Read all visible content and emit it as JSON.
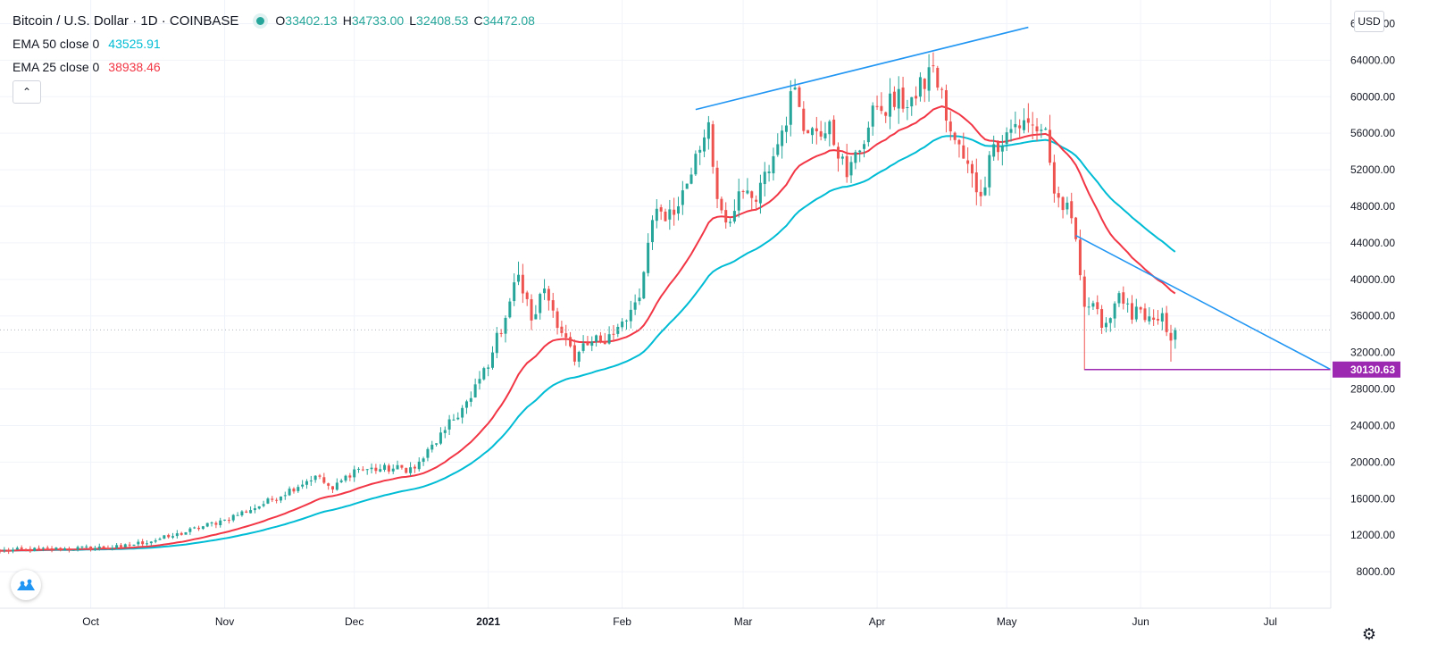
{
  "header": {
    "symbol_title": "Bitcoin / U.S. Dollar · 1D · COINBASE",
    "ohlc": [
      {
        "label": "O",
        "value": "33402.13"
      },
      {
        "label": "H",
        "value": "34733.00"
      },
      {
        "label": "L",
        "value": "32408.53"
      },
      {
        "label": "C",
        "value": "34472.08"
      }
    ]
  },
  "indicators": {
    "ema50": {
      "name": "EMA 50 close 0",
      "value": "43525.91",
      "color": "#00bcd4"
    },
    "ema25": {
      "name": "EMA 25 close 0",
      "value": "38938.46",
      "color": "#f23645"
    }
  },
  "currency": "USD",
  "price_tag": {
    "value": "30130.63",
    "color": "#9c27b0"
  },
  "colors": {
    "up": "#26a69a",
    "down": "#ef5350",
    "trendline": "#2196f3",
    "support": "#9c27b0"
  },
  "icons": {
    "collapse": "chevron-up-icon",
    "logo": "tradingview-logo-icon",
    "settings": "gear-icon"
  },
  "chart_data": {
    "type": "candlestick",
    "y_axis": {
      "range": [
        4000,
        70000
      ],
      "ticks": [
        8000,
        12000,
        16000,
        20000,
        24000,
        28000,
        32000,
        36000,
        40000,
        44000,
        48000,
        52000,
        56000,
        60000,
        64000,
        68000
      ],
      "tick_labels": [
        "8000.00",
        "12000.00",
        "16000.00",
        "20000.00",
        "24000.00",
        "28000.00",
        "32000.00",
        "36000.00",
        "40000.00",
        "44000.00",
        "48000.00",
        "52000.00",
        "56000.00",
        "60000.00",
        "64000.00",
        "68000.00"
      ]
    },
    "x_axis": {
      "range": [
        "2020-09-10",
        "2021-07-15"
      ],
      "ticks": [
        {
          "date": "2020-10-01",
          "label": "Oct",
          "bold": false
        },
        {
          "date": "2020-11-01",
          "label": "Nov",
          "bold": false
        },
        {
          "date": "2020-12-01",
          "label": "Dec",
          "bold": false
        },
        {
          "date": "2021-01-01",
          "label": "2021",
          "bold": true
        },
        {
          "date": "2021-02-01",
          "label": "Feb",
          "bold": false
        },
        {
          "date": "2021-03-01",
          "label": "Mar",
          "bold": false
        },
        {
          "date": "2021-04-01",
          "label": "Apr",
          "bold": false
        },
        {
          "date": "2021-05-01",
          "label": "May",
          "bold": false
        },
        {
          "date": "2021-06-01",
          "label": "Jun",
          "bold": false
        },
        {
          "date": "2021-07-01",
          "label": "Jul",
          "bold": false
        }
      ]
    },
    "close_anchors": [
      [
        "2020-09-10",
        10300
      ],
      [
        "2020-10-08",
        10700
      ],
      [
        "2020-10-20",
        11900
      ],
      [
        "2020-11-01",
        13700
      ],
      [
        "2020-11-10",
        15400
      ],
      [
        "2020-11-22",
        18500
      ],
      [
        "2020-11-26",
        17000
      ],
      [
        "2020-12-01",
        19200
      ],
      [
        "2020-12-15",
        19300
      ],
      [
        "2020-12-22",
        23500
      ],
      [
        "2020-12-28",
        27000
      ],
      [
        "2021-01-02",
        32000
      ],
      [
        "2021-01-08",
        40500
      ],
      [
        "2021-01-11",
        35500
      ],
      [
        "2021-01-14",
        39000
      ],
      [
        "2021-01-21",
        31000
      ],
      [
        "2021-01-24",
        32800
      ],
      [
        "2021-01-29",
        34000
      ],
      [
        "2021-02-02",
        35500
      ],
      [
        "2021-02-05",
        38000
      ],
      [
        "2021-02-08",
        46500
      ],
      [
        "2021-02-14",
        48000
      ],
      [
        "2021-02-21",
        57200
      ],
      [
        "2021-02-23",
        48800
      ],
      [
        "2021-02-26",
        46300
      ],
      [
        "2021-03-01",
        49600
      ],
      [
        "2021-03-04",
        48500
      ],
      [
        "2021-03-09",
        54800
      ],
      [
        "2021-03-13",
        61000
      ],
      [
        "2021-03-16",
        56000
      ],
      [
        "2021-03-21",
        57300
      ],
      [
        "2021-03-25",
        51200
      ],
      [
        "2021-04-01",
        58900
      ],
      [
        "2021-04-10",
        59800
      ],
      [
        "2021-04-14",
        63400
      ],
      [
        "2021-04-18",
        56200
      ],
      [
        "2021-04-25",
        49100
      ],
      [
        "2021-04-28",
        54800
      ],
      [
        "2021-05-03",
        57000
      ],
      [
        "2021-05-10",
        56500
      ],
      [
        "2021-05-12",
        49400
      ],
      [
        "2021-05-16",
        46700
      ],
      [
        "2021-05-19",
        37000
      ],
      [
        "2021-05-21",
        37400
      ],
      [
        "2021-05-23",
        34700
      ],
      [
        "2021-05-27",
        38500
      ],
      [
        "2021-05-30",
        35600
      ],
      [
        "2021-06-01",
        36700
      ],
      [
        "2021-06-05",
        35500
      ],
      [
        "2021-06-06",
        36300
      ],
      [
        "2021-06-08",
        33300
      ],
      [
        "2021-06-09",
        34472
      ]
    ],
    "last_candle": {
      "date": "2021-06-09",
      "open": 33402.13,
      "high": 34733.0,
      "low": 32408.53,
      "close": 34472.08
    },
    "current_price": 34472.08,
    "series": [
      {
        "name": "EMA 50 close 0",
        "last_value": 43525.91,
        "color": "#00bcd4"
      },
      {
        "name": "EMA 25 close 0",
        "last_value": 38938.46,
        "color": "#f23645"
      }
    ],
    "drawings": [
      {
        "type": "trendline",
        "points": [
          [
            "2021-02-18",
            58600
          ],
          [
            "2021-05-06",
            67600
          ]
        ],
        "color": "#2196f3"
      },
      {
        "type": "trendline",
        "points": [
          [
            "2021-05-17",
            44800
          ],
          [
            "2021-07-15",
            30130.63
          ]
        ],
        "color": "#2196f3"
      },
      {
        "type": "horizontal",
        "from": "2021-05-19",
        "value": 30130.63,
        "color": "#9c27b0"
      }
    ],
    "grid": true
  }
}
